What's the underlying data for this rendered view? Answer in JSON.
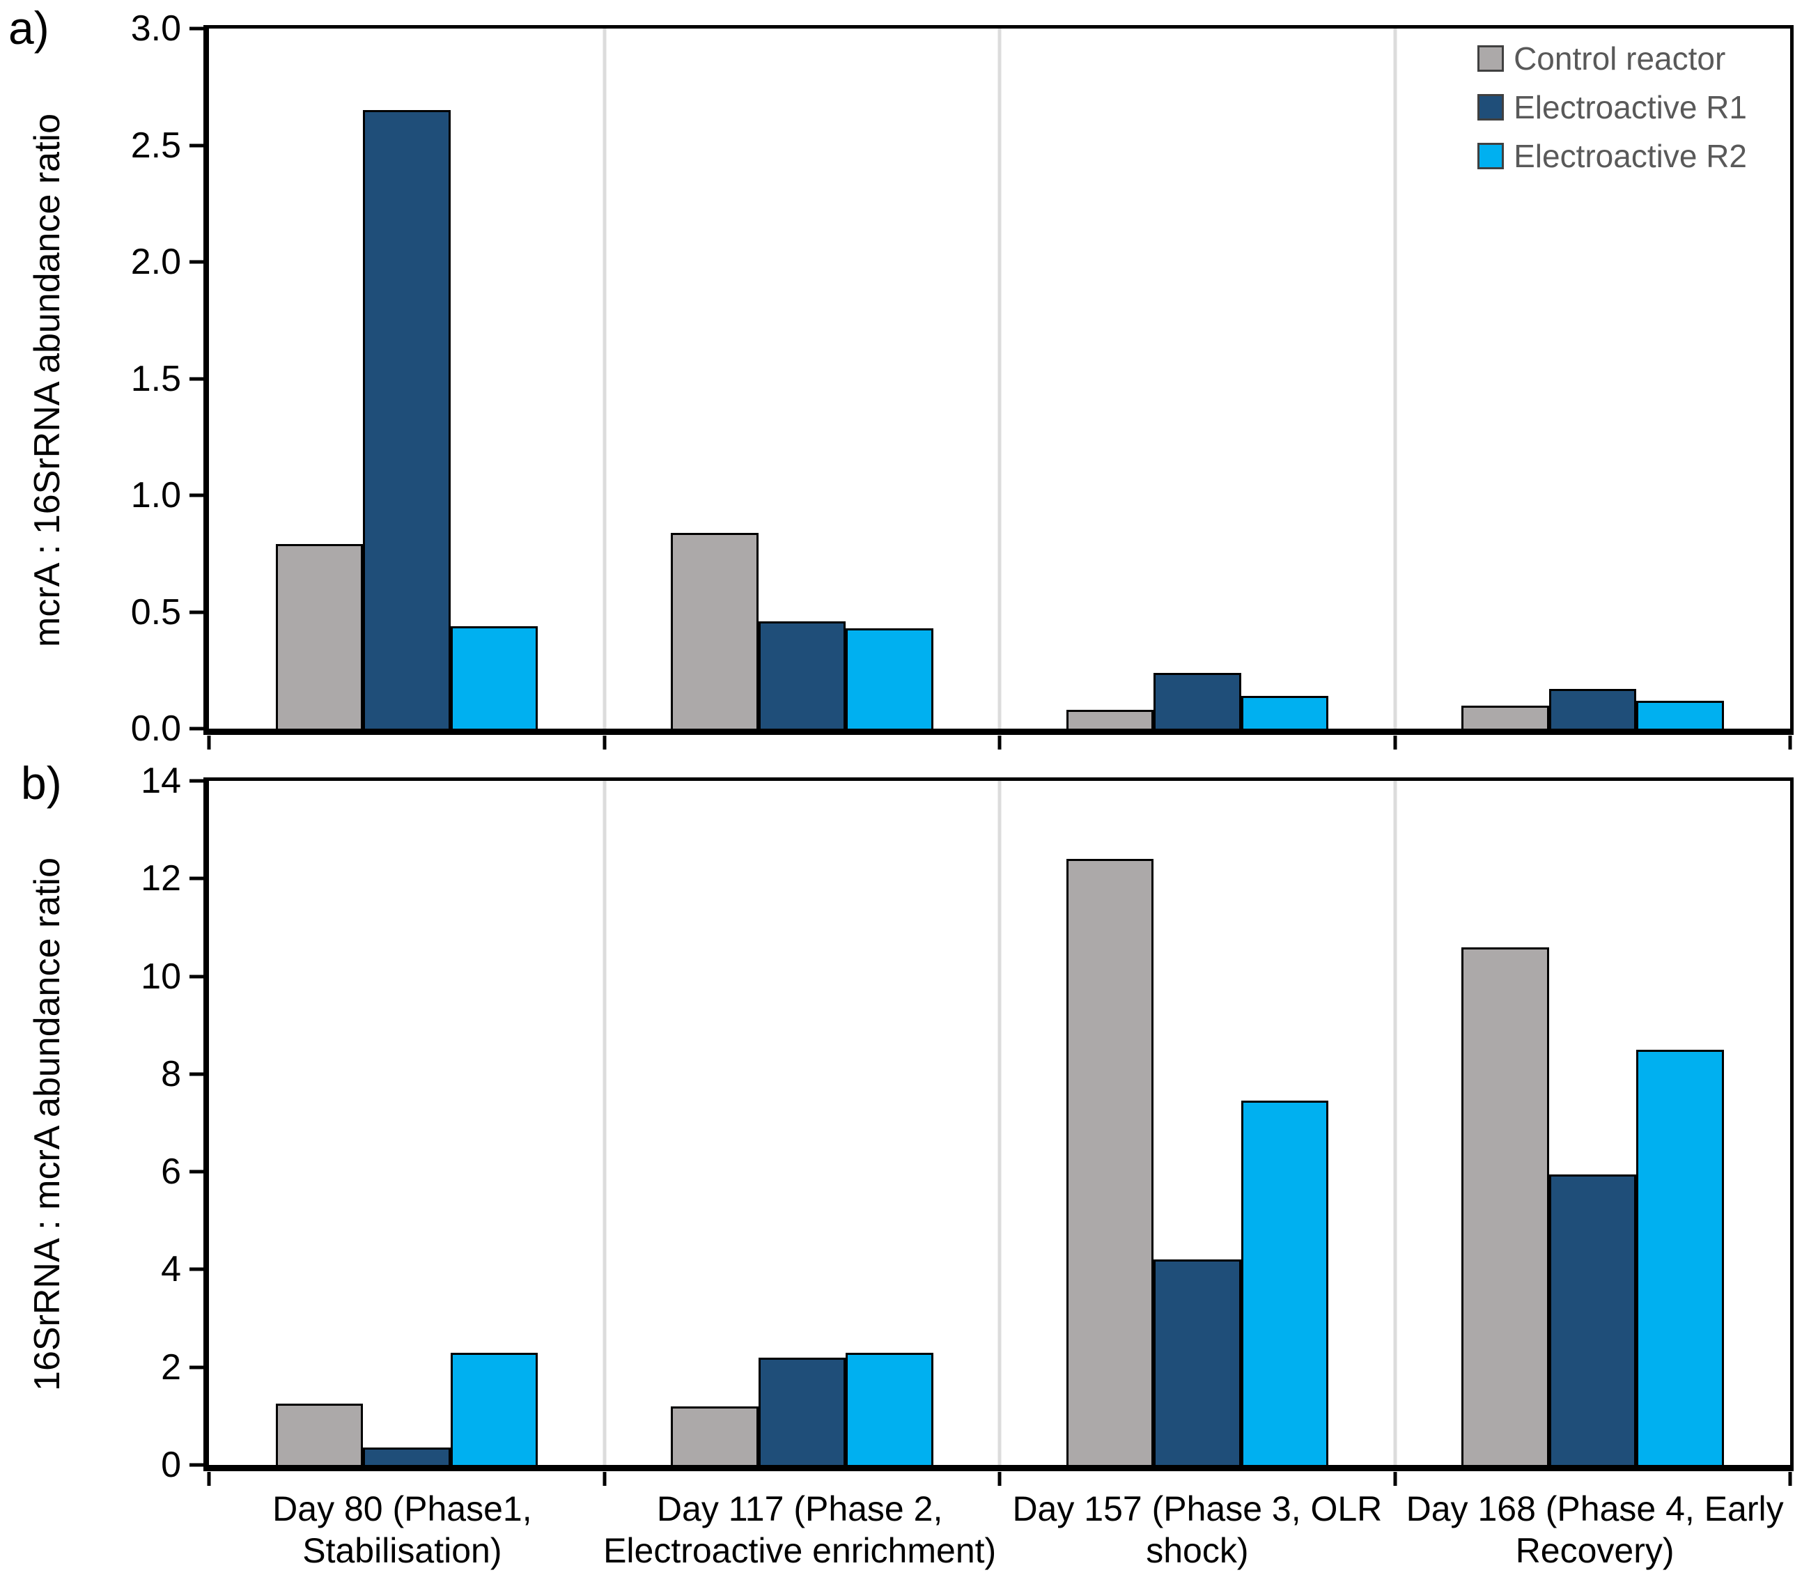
{
  "figure": {
    "panel_a_label": "a)",
    "panel_b_label": "b)"
  },
  "legend": {
    "position": "top-right",
    "items": [
      {
        "label": "Control reactor",
        "color": "#ACA9A9"
      },
      {
        "label": "Electroactive R1",
        "color": "#1F4E79"
      },
      {
        "label": "Electroactive R2",
        "color": "#00B0F0"
      }
    ]
  },
  "colors": {
    "axis": "#000000",
    "category_separator": "#DCDCDC",
    "legend_text": "#595959",
    "gray_series": "#ACA9A9",
    "dark_blue_series": "#1F4E79",
    "light_blue_series": "#00B0F0"
  },
  "chart_data": [
    {
      "type": "bar",
      "panel": "a",
      "title": "",
      "xlabel": "",
      "ylabel": "mcrA : 16SrRNA abundance ratio",
      "ylim": [
        0,
        3.0
      ],
      "yticks": [
        "0.0",
        "0.5",
        "1.0",
        "1.5",
        "2.0",
        "2.5",
        "3.0"
      ],
      "grid": "off",
      "legend_position": "top-right-inside",
      "show_x_labels": false,
      "categories": [
        "Day 80 (Phase1, Stabilisation)",
        "Day 117 (Phase 2, Electroactive enrichment)",
        "Day 157 (Phase 3, OLR shock)",
        "Day 168 (Phase 4, Early Recovery)"
      ],
      "series": [
        {
          "name": "Control reactor",
          "color": "#ACA9A9",
          "values": [
            0.79,
            0.84,
            0.08,
            0.1
          ]
        },
        {
          "name": "Electroactive R1",
          "color": "#1F4E79",
          "values": [
            2.65,
            0.46,
            0.24,
            0.17
          ]
        },
        {
          "name": "Electroactive R2",
          "color": "#00B0F0",
          "values": [
            0.44,
            0.43,
            0.14,
            0.12
          ]
        }
      ]
    },
    {
      "type": "bar",
      "panel": "b",
      "title": "",
      "xlabel": "",
      "ylabel": "16SrRNA : mcrA abundance ratio",
      "ylim": [
        0,
        14
      ],
      "yticks": [
        "0",
        "2",
        "4",
        "6",
        "8",
        "10",
        "12",
        "14"
      ],
      "grid": "off",
      "show_x_labels": true,
      "categories": [
        "Day 80 (Phase1, Stabilisation)",
        "Day 117 (Phase 2, Electroactive enrichment)",
        "Day 157 (Phase 3, OLR shock)",
        "Day 168 (Phase 4, Early Recovery)"
      ],
      "category_label_lines": [
        [
          "Day 80 (Phase1,",
          "Stabilisation)"
        ],
        [
          "Day 117 (Phase 2,",
          "Electroactive enrichment)"
        ],
        [
          "Day 157 (Phase 3, OLR",
          "shock)"
        ],
        [
          "Day 168 (Phase 4, Early",
          "Recovery)"
        ]
      ],
      "series": [
        {
          "name": "Control reactor",
          "color": "#ACA9A9",
          "values": [
            1.25,
            1.2,
            12.4,
            10.6
          ]
        },
        {
          "name": "Electroactive R1",
          "color": "#1F4E79",
          "values": [
            0.35,
            2.2,
            4.2,
            5.95
          ]
        },
        {
          "name": "Electroactive R2",
          "color": "#00B0F0",
          "values": [
            2.3,
            2.3,
            7.45,
            8.5
          ]
        }
      ]
    }
  ]
}
